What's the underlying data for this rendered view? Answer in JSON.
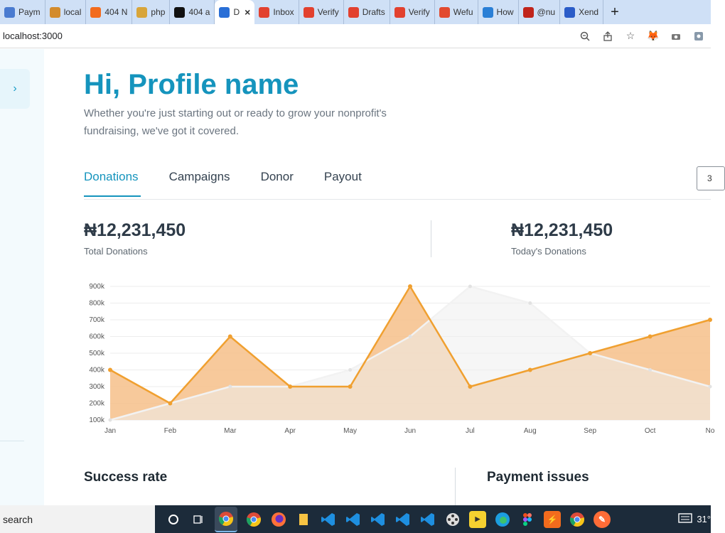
{
  "browser": {
    "tabs": [
      {
        "label": "Paym",
        "icon": "payment-icon",
        "color": "#4a7bd0"
      },
      {
        "label": "local",
        "icon": "xampp-icon",
        "color": "#d38b2c"
      },
      {
        "label": "404 N",
        "icon": "bolt-icon",
        "color": "#f26b1d"
      },
      {
        "label": "php",
        "icon": "php-icon",
        "color": "#d8a53a"
      },
      {
        "label": "404 a",
        "icon": "github-icon",
        "color": "#111111"
      },
      {
        "label": "D",
        "icon": "dashboard-icon",
        "color": "#2a6fd6",
        "active": true
      },
      {
        "label": "Inbox",
        "icon": "gmail-icon",
        "color": "#e2412f"
      },
      {
        "label": "Verify",
        "icon": "gmail-icon",
        "color": "#e2412f"
      },
      {
        "label": "Drafts",
        "icon": "gmail-icon",
        "color": "#e2412f"
      },
      {
        "label": "Verify",
        "icon": "gmail-icon",
        "color": "#e2412f"
      },
      {
        "label": "Wefu",
        "icon": "wefund-icon",
        "color": "#e24a2f"
      },
      {
        "label": "How",
        "icon": "doc-icon",
        "color": "#2a7fd6"
      },
      {
        "label": "@nu",
        "icon": "nuxt-icon",
        "color": "#c0241b"
      },
      {
        "label": "Xend",
        "icon": "xend-icon",
        "color": "#2a5cc8"
      }
    ],
    "new_tab": "+",
    "close_tab": "×",
    "url": "localhost:3000"
  },
  "page": {
    "greeting": "Hi, Profile name",
    "subtitle": "Whether you're just starting out or ready to grow your nonprofit's fundraising, we've got it covered.",
    "tabs": [
      "Donations",
      "Campaigns",
      "Donor",
      "Payout"
    ],
    "active_tab": "Donations",
    "date_button": "3",
    "stats": [
      {
        "value": "₦12,231,450",
        "label": "Total Donations"
      },
      {
        "value": "₦12,231,450",
        "label": "Today's Donations"
      }
    ],
    "sections": [
      "Success rate",
      "Payment issues"
    ],
    "accent": "#1594bd"
  },
  "chart_data": {
    "type": "area",
    "categories": [
      "Jan",
      "Feb",
      "Mar",
      "Apr",
      "May",
      "Jun",
      "Jul",
      "Aug",
      "Sep",
      "Oct",
      "No"
    ],
    "y_ticks": [
      "100k",
      "200k",
      "300k",
      "400k",
      "500k",
      "600k",
      "700k",
      "800k",
      "900k"
    ],
    "ylim": [
      100000,
      900000
    ],
    "series": [
      {
        "color": "#f0a030",
        "values": [
          400000,
          200000,
          600000,
          300000,
          300000,
          900000,
          300000,
          400000,
          500000,
          600000,
          700000
        ]
      },
      {
        "color": "#e8e8e8",
        "values": [
          100000,
          200000,
          300000,
          300000,
          400000,
          600000,
          900000,
          800000,
          500000,
          400000,
          300000
        ]
      }
    ],
    "grid": true
  },
  "taskbar": {
    "search": "search",
    "tray_text": "31°"
  }
}
